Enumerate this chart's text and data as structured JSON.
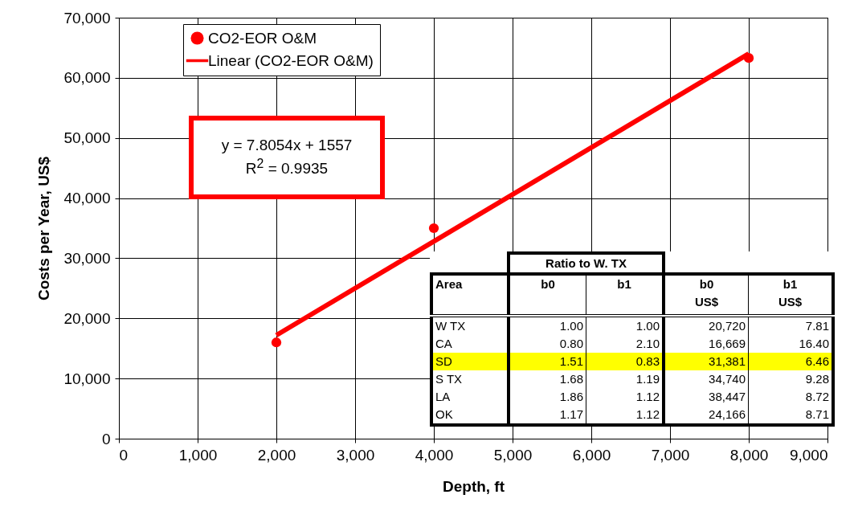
{
  "chart_data": {
    "type": "scatter",
    "xlabel": "Depth, ft",
    "ylabel": "Costs per Year, US$",
    "x": [
      2000,
      4000,
      8000
    ],
    "series": [
      {
        "name": "CO2-EOR O&M",
        "color": "#ff0000",
        "marker": "circle",
        "values": [
          16000,
          35000,
          63300
        ]
      },
      {
        "name": "Linear (CO2-EOR O&M)",
        "type": "line",
        "color": "#ff0000",
        "x": [
          2000,
          8000
        ],
        "values": [
          17200,
          64000
        ]
      }
    ],
    "xlim": [
      0,
      9000
    ],
    "xticks": [
      0,
      {
        "value": 1000,
        "label": "1,000"
      },
      {
        "value": 2000,
        "label": "2,000"
      },
      {
        "value": 3000,
        "label": "3,000"
      },
      {
        "value": 4000,
        "label": "4,000"
      },
      {
        "value": 5000,
        "label": "5,000"
      },
      {
        "value": 6000,
        "label": "6,000"
      },
      {
        "value": 7000,
        "label": "7,000"
      },
      {
        "value": 8000,
        "label": "8,000"
      },
      {
        "value": 9000,
        "label": "9,000"
      }
    ],
    "ylim": [
      0,
      70000
    ],
    "yticks": [
      0,
      {
        "value": 10000,
        "label": "10,000"
      },
      {
        "value": 20000,
        "label": "20,000"
      },
      {
        "value": 30000,
        "label": "30,000"
      },
      {
        "value": 40000,
        "label": "40,000"
      },
      {
        "value": 50000,
        "label": "50,000"
      },
      {
        "value": 60000,
        "label": "60,000"
      },
      {
        "value": 70000,
        "label": "70,000"
      }
    ],
    "grid": true,
    "legend": "top left",
    "line_style": "solid",
    "annotations": [
      "y = 7.8054x + 1557",
      "R$^{2}$ = 0.9935",
      "Ratio to W. TX",
      "Area",
      "b0",
      "b1",
      "b0 US$",
      "b1 US$",
      "W TX",
      "1.00",
      "1.00",
      "20,720",
      "7.81",
      "CA",
      "0.80",
      "2.10",
      "16,669",
      "16.40",
      "SD",
      "1.51",
      "0.83",
      "31,381",
      "6.46",
      "S TX",
      "1.68",
      "1.19",
      "34,740",
      "9.28",
      "LA",
      "1.86",
      "1.12",
      "38,447",
      "8.72",
      "OK",
      "1.17",
      "1.12",
      "24,166",
      "8.71"
    ]
  }
}
